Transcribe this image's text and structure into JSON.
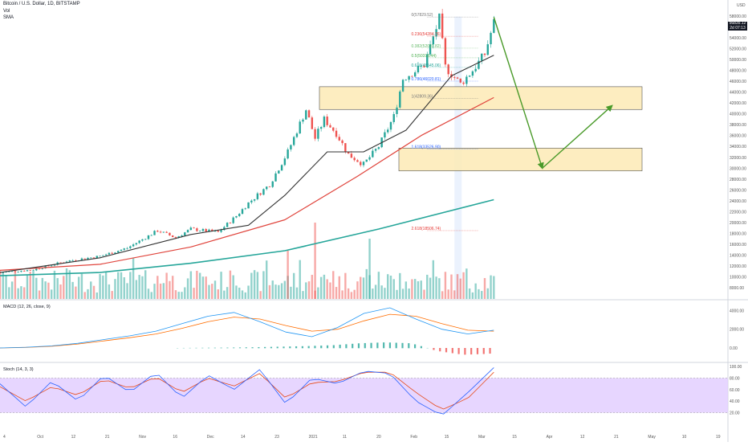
{
  "header": {
    "symbol": "Bitcoin / U.S. Dollar, 1D, BITSTAMP",
    "vol_label": "Vol",
    "sma_label": "SMA"
  },
  "axis": {
    "currency": "USD",
    "price_ticks": [
      "58000.00",
      "56000.00",
      "54000.00",
      "52000.00",
      "50000.00",
      "48000.00",
      "46000.00",
      "44000.00",
      "42000.00",
      "40000.00",
      "38000.00",
      "36000.00",
      "34000.00",
      "32000.00",
      "30000.00",
      "28000.00",
      "26000.00",
      "24000.00",
      "22000.00",
      "20000.00",
      "18000.00",
      "16000.00",
      "14000.00",
      "12000.00",
      "10000.00",
      "8000.00"
    ],
    "last_price": "56835.12",
    "last_price_sub": "2d 07:13",
    "macd_ticks": [
      "4000.00",
      "2000.00",
      "0.00"
    ],
    "stoch_ticks": [
      "100.00",
      "80.00",
      "60.00",
      "40.00",
      "20.00"
    ],
    "time_labels": [
      "4",
      "Oct",
      "12",
      "21",
      "Nov",
      "16",
      "Dec",
      "14",
      "23",
      "2021",
      "11",
      "20",
      "Feb",
      "15",
      "Mar",
      "15",
      "Apr",
      "12",
      "21",
      "May",
      "10",
      "19"
    ]
  },
  "fib_labels": {
    "f0": "0(57829.52)",
    "f236": "0.236(54284.76)",
    "f382": "0.382(52091.82)",
    "f5": "0.5(50318.44)",
    "f618": "0.618(48545.06)",
    "f786": "0.786(46020.81)",
    "f1": "1(42809.36)",
    "f1618": "1.618(33526.90)",
    "f2618": "2.618(18506.74)"
  },
  "indicators": {
    "macd_title": "MACD (12, 26, close, 9)",
    "stoch_title": "Stoch (14, 3, 3)"
  },
  "colors": {
    "up": "#26a69a",
    "down": "#ef5350",
    "sma_fast": "#333333",
    "sma_mid": "#e0443c",
    "sma_slow": "#26a69a",
    "zone": "#fdebb6",
    "arrow": "#4a9a2a",
    "macd": "#2196f3",
    "signal": "#ff6d00",
    "stoch_k": "#2962ff",
    "stoch_d": "#e64a19",
    "stoch_band": "#e1ccff"
  },
  "chart_data": [
    {
      "type": "candlestick",
      "title": "Bitcoin / U.S. Dollar, 1D, BITSTAMP",
      "ylabel": "USD",
      "ylim": [
        8000,
        58000
      ],
      "x_range": [
        "2020-09-29",
        "2021-05-27"
      ],
      "price_anchors": [
        {
          "date": "2020-09-29",
          "close": 10800
        },
        {
          "date": "2020-10-10",
          "close": 11300
        },
        {
          "date": "2020-10-21",
          "close": 12900
        },
        {
          "date": "2020-11-01",
          "close": 13800
        },
        {
          "date": "2020-11-10",
          "close": 15300
        },
        {
          "date": "2020-11-20",
          "close": 18500
        },
        {
          "date": "2020-11-26",
          "close": 17200
        },
        {
          "date": "2020-12-01",
          "close": 18800
        },
        {
          "date": "2020-12-10",
          "close": 18200
        },
        {
          "date": "2020-12-16",
          "close": 21200
        },
        {
          "date": "2020-12-20",
          "close": 23600
        },
        {
          "date": "2020-12-27",
          "close": 27000
        },
        {
          "date": "2021-01-02",
          "close": 33000
        },
        {
          "date": "2021-01-08",
          "close": 40800
        },
        {
          "date": "2021-01-11",
          "close": 35500
        },
        {
          "date": "2021-01-14",
          "close": 39000
        },
        {
          "date": "2021-01-18",
          "close": 36400
        },
        {
          "date": "2021-01-22",
          "close": 32500
        },
        {
          "date": "2021-01-27",
          "close": 30700
        },
        {
          "date": "2021-02-01",
          "close": 34000
        },
        {
          "date": "2021-02-06",
          "close": 39500
        },
        {
          "date": "2021-02-09",
          "close": 46500
        },
        {
          "date": "2021-02-16",
          "close": 49000
        },
        {
          "date": "2021-02-21",
          "close": 57500
        },
        {
          "date": "2021-02-23",
          "close": 48600
        },
        {
          "date": "2021-02-28",
          "close": 45500
        },
        {
          "date": "2021-03-04",
          "close": 48000
        },
        {
          "date": "2021-03-08",
          "close": 51000
        },
        {
          "date": "2021-03-11",
          "close": 56835
        }
      ],
      "sma_fast": [
        [
          "2020-09-29",
          10800
        ],
        [
          "2020-11-01",
          13500
        ],
        [
          "2020-12-01",
          17800
        ],
        [
          "2020-12-20",
          19500
        ],
        [
          "2021-01-01",
          25000
        ],
        [
          "2021-01-15",
          33000
        ],
        [
          "2021-01-27",
          33000
        ],
        [
          "2021-02-10",
          37000
        ],
        [
          "2021-02-25",
          47000
        ],
        [
          "2021-03-11",
          50800
        ]
      ],
      "sma_mid": [
        [
          "2020-09-29",
          11200
        ],
        [
          "2020-11-01",
          12300
        ],
        [
          "2020-12-01",
          15500
        ],
        [
          "2021-01-01",
          20500
        ],
        [
          "2021-01-25",
          28500
        ],
        [
          "2021-02-15",
          36000
        ],
        [
          "2021-03-11",
          43000
        ]
      ],
      "sma_slow": [
        [
          "2020-09-29",
          10200
        ],
        [
          "2020-11-01",
          10800
        ],
        [
          "2020-12-01",
          12500
        ],
        [
          "2021-01-01",
          14800
        ],
        [
          "2021-02-01",
          18800
        ],
        [
          "2021-03-11",
          24200
        ]
      ],
      "zones": [
        [
          40800,
          45000
        ],
        [
          29500,
          33700
        ]
      ],
      "projection": [
        [
          "2021-03-11",
          57800
        ],
        [
          "2021-03-27",
          30000
        ],
        [
          "2021-04-19",
          41500
        ]
      ]
    },
    {
      "type": "line",
      "title": "MACD (12, 26, close, 9)",
      "series": [
        {
          "name": "MACD",
          "values": [
            0,
            80,
            220,
            500,
            900,
            1300,
            1800,
            2600,
            3400,
            3800,
            2800,
            1700,
            1200,
            2200,
            3700,
            4300,
            3100,
            2000,
            1500,
            1900
          ]
        },
        {
          "name": "Signal",
          "values": [
            0,
            60,
            180,
            420,
            760,
            1100,
            1500,
            2100,
            2800,
            3300,
            3100,
            2400,
            1800,
            2000,
            2900,
            3600,
            3400,
            2600,
            1900,
            1800
          ]
        }
      ]
    },
    {
      "type": "line",
      "title": "Stoch (14, 3, 3)",
      "ylim": [
        0,
        100
      ],
      "series": [
        {
          "name": "%K",
          "values": [
            70,
            30,
            75,
            40,
            85,
            55,
            90,
            45,
            85,
            60,
            95,
            35,
            80,
            70,
            92,
            88,
            40,
            15,
            55,
            98
          ]
        },
        {
          "name": "%D",
          "values": [
            65,
            40,
            65,
            50,
            78,
            62,
            82,
            55,
            80,
            66,
            88,
            45,
            72,
            74,
            90,
            90,
            55,
            25,
            45,
            90
          ]
        }
      ]
    }
  ]
}
